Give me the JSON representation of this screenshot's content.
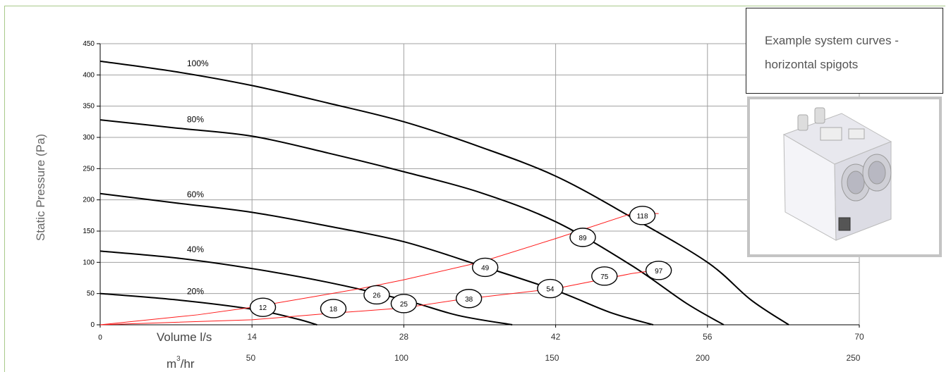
{
  "chart_data": {
    "type": "line",
    "ylabel": "Static Pressure (Pa)",
    "xlabel_primary": "Volume l/s",
    "xlabel_secondary": "m³/hr",
    "xlabel_secondary_base": "m",
    "xlabel_secondary_sup": "3",
    "xlabel_secondary_unit": "/hr",
    "ylim": [
      0,
      450
    ],
    "xlim": [
      0,
      70
    ],
    "yticks": [
      "0",
      "50",
      "100",
      "150",
      "200",
      "250",
      "300",
      "350",
      "400",
      "450"
    ],
    "xticks_ls": [
      "0",
      "14",
      "28",
      "42",
      "56",
      "70"
    ],
    "xticks_m3hr": [
      "50",
      "100",
      "150",
      "200",
      "250"
    ],
    "grid": true,
    "fan_curves": [
      {
        "name": "100%",
        "x": [
          0,
          7,
          14,
          21,
          28,
          35,
          42,
          49,
          56,
          60,
          63.5
        ],
        "y": [
          422,
          405,
          383,
          355,
          325,
          285,
          238,
          172,
          100,
          40,
          0
        ]
      },
      {
        "name": "80%",
        "x": [
          0,
          7,
          14,
          21,
          28,
          35,
          42,
          49,
          54,
          57.5
        ],
        "y": [
          328,
          315,
          302,
          275,
          245,
          212,
          165,
          95,
          35,
          0
        ]
      },
      {
        "name": "60%",
        "x": [
          0,
          7,
          14,
          21,
          28,
          35,
          42,
          47,
          51
        ],
        "y": [
          210,
          195,
          180,
          158,
          133,
          95,
          55,
          20,
          0
        ]
      },
      {
        "name": "40%",
        "x": [
          0,
          7,
          14,
          21,
          28,
          33,
          38
        ],
        "y": [
          118,
          107,
          90,
          68,
          40,
          15,
          0
        ]
      },
      {
        "name": "20%",
        "x": [
          0,
          7,
          14,
          18,
          20
        ],
        "y": [
          50,
          40,
          25,
          10,
          0
        ]
      }
    ],
    "system_curves": [
      {
        "name": "upper",
        "x": [
          0,
          9,
          14,
          20,
          24,
          28,
          35,
          42,
          49,
          51.5
        ],
        "y": [
          0,
          16,
          28,
          46,
          58,
          72,
          100,
          138,
          178,
          178
        ]
      },
      {
        "name": "lower",
        "x": [
          0,
          14,
          21,
          28,
          33,
          42,
          49,
          51.5
        ],
        "y": [
          0,
          8,
          18,
          27,
          40,
          58,
          82,
          88
        ]
      }
    ],
    "markers": [
      {
        "label": "12",
        "x": 15,
        "y": 28
      },
      {
        "label": "18",
        "x": 21.5,
        "y": 26
      },
      {
        "label": "26",
        "x": 25.5,
        "y": 48
      },
      {
        "label": "25",
        "x": 28,
        "y": 34
      },
      {
        "label": "38",
        "x": 34,
        "y": 42
      },
      {
        "label": "49",
        "x": 35.5,
        "y": 92
      },
      {
        "label": "54",
        "x": 41.5,
        "y": 58
      },
      {
        "label": "75",
        "x": 46.5,
        "y": 78
      },
      {
        "label": "89",
        "x": 44.5,
        "y": 140
      },
      {
        "label": "97",
        "x": 51.5,
        "y": 87
      },
      {
        "label": "118",
        "x": 50,
        "y": 175
      }
    ]
  },
  "panel": {
    "title_line1": "Example system curves -",
    "title_line2": "horizontal spigots"
  },
  "colors": {
    "fan_curve": "#000000",
    "system_curve": "#ff1a1a",
    "grid": "#a0a0a0",
    "frame": "#a8c98a"
  }
}
